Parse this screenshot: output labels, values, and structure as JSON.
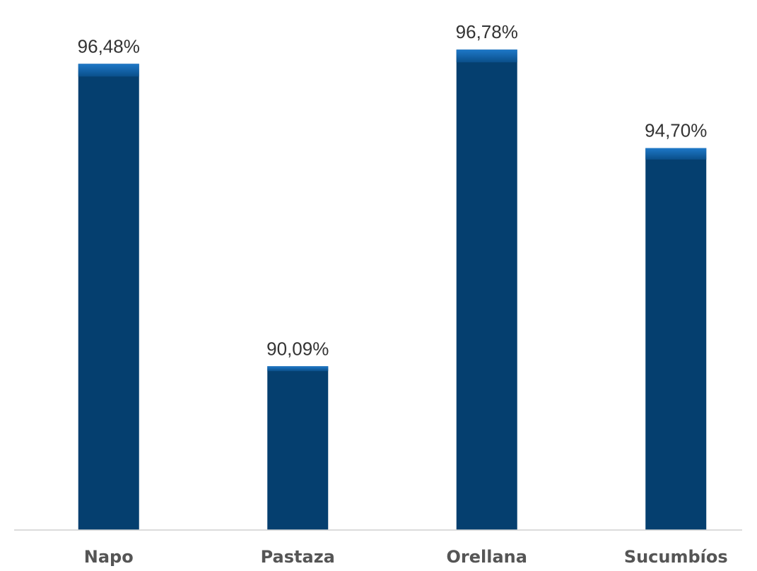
{
  "chart_data": {
    "type": "bar",
    "categories": [
      "Napo",
      "Pastaza",
      "Orellana",
      "Sucumbíos"
    ],
    "values": [
      96.48,
      90.09,
      96.78,
      94.7
    ],
    "data_labels": [
      "96,48%",
      "90,09%",
      "96,78%",
      "94,70%"
    ],
    "title": "",
    "xlabel": "",
    "ylabel": "",
    "ylim": [
      86.63,
      97.53
    ],
    "grid": false,
    "legend": "none",
    "colors": {
      "bar": "#053f6f",
      "bar_top": "#1a6fb8",
      "axis": "#d0d0d0"
    }
  }
}
